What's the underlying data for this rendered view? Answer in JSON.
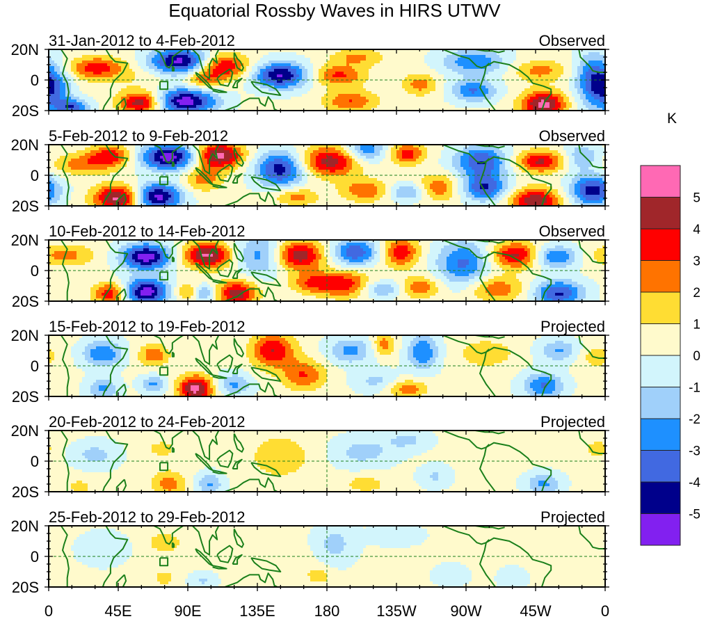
{
  "chart_data": {
    "type": "heatmap",
    "title": "Equatorial Rossby Waves in HIRS UTWV",
    "units_label": "K",
    "xlabel": "",
    "ylabel": "",
    "x_range_deg_east": [
      0,
      360
    ],
    "y_range_deg": [
      -20,
      20
    ],
    "x_ticks": [
      {
        "lon": 0,
        "label": "0"
      },
      {
        "lon": 45,
        "label": "45E"
      },
      {
        "lon": 90,
        "label": "90E"
      },
      {
        "lon": 135,
        "label": "135E"
      },
      {
        "lon": 180,
        "label": "180"
      },
      {
        "lon": 225,
        "label": "135W"
      },
      {
        "lon": 270,
        "label": "90W"
      },
      {
        "lon": 315,
        "label": "45W"
      },
      {
        "lon": 360,
        "label": "0"
      }
    ],
    "y_ticks": [
      {
        "lat": 20,
        "label": "20N"
      },
      {
        "lat": 0,
        "label": "0"
      },
      {
        "lat": -20,
        "label": "20S"
      }
    ],
    "reference_lines": {
      "equator_lat": 0,
      "dateline_lon": 180,
      "style": "dashed"
    },
    "legend": {
      "placement": "right",
      "levels": [
        5,
        4,
        3,
        2,
        1,
        0,
        -1,
        -2,
        -3,
        -4,
        -5
      ],
      "colors_top_to_bottom": [
        "#ff69b4",
        "#a0262a",
        "#ff0000",
        "#ff7300",
        "#ffdd33",
        "#fffacc",
        "#d2f5fc",
        "#a0d0fa",
        "#1e90ff",
        "#4169e1",
        "#00008b",
        "#8220f0"
      ]
    },
    "panels": [
      {
        "period": "31-Jan-2012 to 4-Feb-2012",
        "status": "Observed",
        "anomalies": [
          {
            "lon": 30,
            "lat": 8,
            "k": 3.2,
            "sx": 12,
            "sy": 5
          },
          {
            "lon": 85,
            "lat": 12,
            "k": -5.8,
            "sx": 14,
            "sy": 6
          },
          {
            "lon": 88,
            "lat": -14,
            "k": -5.8,
            "sx": 14,
            "sy": 6
          },
          {
            "lon": 60,
            "lat": -15,
            "k": 4.8,
            "sx": 10,
            "sy": 5
          },
          {
            "lon": 112,
            "lat": 9,
            "k": 4.2,
            "sx": 12,
            "sy": 6
          },
          {
            "lon": 100,
            "lat": 0,
            "k": 2.3,
            "sx": 8,
            "sy": 4
          },
          {
            "lon": 150,
            "lat": 3,
            "k": -5.3,
            "sx": 12,
            "sy": 6
          },
          {
            "lon": 188,
            "lat": 3,
            "k": 3.0,
            "sx": 12,
            "sy": 5
          },
          {
            "lon": 195,
            "lat": -14,
            "k": 2.8,
            "sx": 12,
            "sy": 5
          },
          {
            "lon": 200,
            "lat": 15,
            "k": 2.0,
            "sx": 12,
            "sy": 4
          },
          {
            "lon": 240,
            "lat": -3,
            "k": 2.3,
            "sx": 8,
            "sy": 5
          },
          {
            "lon": 275,
            "lat": 12,
            "k": -3.1,
            "sx": 14,
            "sy": 6
          },
          {
            "lon": 275,
            "lat": -7,
            "k": -3.3,
            "sx": 10,
            "sy": 5
          },
          {
            "lon": 318,
            "lat": 6,
            "k": 2.2,
            "sx": 12,
            "sy": 5
          },
          {
            "lon": 320,
            "lat": -16,
            "k": 5.2,
            "sx": 10,
            "sy": 6
          },
          {
            "lon": 352,
            "lat": 0,
            "k": -3.5,
            "sx": 8,
            "sy": 12
          },
          {
            "lon": 3,
            "lat": -5,
            "k": -3.2,
            "sx": 8,
            "sy": 10
          },
          {
            "lon": 15,
            "lat": -18,
            "k": -3.8,
            "sx": 8,
            "sy": 4
          },
          {
            "lon": 55,
            "lat": 3,
            "k": 0.8,
            "sx": 20,
            "sy": 8
          }
        ]
      },
      {
        "period": "5-Feb-2012 to 9-Feb-2012",
        "status": "Observed",
        "anomalies": [
          {
            "lon": 22,
            "lat": 7,
            "k": 2.3,
            "sx": 14,
            "sy": 5
          },
          {
            "lon": 40,
            "lat": 13,
            "k": 3.2,
            "sx": 10,
            "sy": 5
          },
          {
            "lon": 78,
            "lat": 12,
            "k": -5.8,
            "sx": 13,
            "sy": 6
          },
          {
            "lon": 70,
            "lat": -14,
            "k": -5.8,
            "sx": 11,
            "sy": 6
          },
          {
            "lon": 45,
            "lat": -15,
            "k": 5.3,
            "sx": 11,
            "sy": 6
          },
          {
            "lon": 110,
            "lat": 13,
            "k": 5.2,
            "sx": 11,
            "sy": 6
          },
          {
            "lon": 100,
            "lat": -2,
            "k": 2.3,
            "sx": 9,
            "sy": 6
          },
          {
            "lon": 150,
            "lat": 4,
            "k": -4.8,
            "sx": 11,
            "sy": 8
          },
          {
            "lon": 182,
            "lat": 9,
            "k": 4.3,
            "sx": 14,
            "sy": 7
          },
          {
            "lon": 160,
            "lat": -14,
            "k": 2.3,
            "sx": 10,
            "sy": 4
          },
          {
            "lon": 205,
            "lat": 17,
            "k": -3.2,
            "sx": 9,
            "sy": 6
          },
          {
            "lon": 232,
            "lat": 14,
            "k": 3.3,
            "sx": 8,
            "sy": 5
          },
          {
            "lon": 205,
            "lat": -10,
            "k": 2.7,
            "sx": 11,
            "sy": 5
          },
          {
            "lon": 232,
            "lat": -11,
            "k": -2.5,
            "sx": 9,
            "sy": 4
          },
          {
            "lon": 252,
            "lat": -8,
            "k": 2.6,
            "sx": 9,
            "sy": 6
          },
          {
            "lon": 280,
            "lat": 9,
            "k": -4.2,
            "sx": 12,
            "sy": 7
          },
          {
            "lon": 282,
            "lat": -8,
            "k": -4.2,
            "sx": 10,
            "sy": 6
          },
          {
            "lon": 318,
            "lat": 9,
            "k": 4.0,
            "sx": 11,
            "sy": 5
          },
          {
            "lon": 315,
            "lat": -17,
            "k": 4.7,
            "sx": 11,
            "sy": 6
          },
          {
            "lon": 352,
            "lat": -10,
            "k": -4.8,
            "sx": 10,
            "sy": 7
          },
          {
            "lon": 345,
            "lat": 12,
            "k": -2.2,
            "sx": 8,
            "sy": 6
          }
        ]
      },
      {
        "period": "10-Feb-2012 to 14-Feb-2012",
        "status": "Observed",
        "anomalies": [
          {
            "lon": 10,
            "lat": 10,
            "k": 2.2,
            "sx": 14,
            "sy": 5
          },
          {
            "lon": 63,
            "lat": 9,
            "k": -5.8,
            "sx": 11,
            "sy": 6
          },
          {
            "lon": 63,
            "lat": -14,
            "k": -5.8,
            "sx": 10,
            "sy": 6
          },
          {
            "lon": 40,
            "lat": -15,
            "k": 3.6,
            "sx": 8,
            "sy": 5
          },
          {
            "lon": 103,
            "lat": 10,
            "k": 5.1,
            "sx": 11,
            "sy": 6
          },
          {
            "lon": 122,
            "lat": -15,
            "k": 4.4,
            "sx": 9,
            "sy": 6
          },
          {
            "lon": 90,
            "lat": -14,
            "k": 2.2,
            "sx": 6,
            "sy": 4
          },
          {
            "lon": 100,
            "lat": -15,
            "k": -2.6,
            "sx": 5,
            "sy": 4
          },
          {
            "lon": 140,
            "lat": 10,
            "k": -3.2,
            "sx": 13,
            "sy": 9
          },
          {
            "lon": 160,
            "lat": 10,
            "k": 5.2,
            "sx": 12,
            "sy": 7
          },
          {
            "lon": 170,
            "lat": -8,
            "k": 2.5,
            "sx": 10,
            "sy": 5
          },
          {
            "lon": 192,
            "lat": -9,
            "k": 3.5,
            "sx": 12,
            "sy": 6
          },
          {
            "lon": 198,
            "lat": 12,
            "k": -4.1,
            "sx": 10,
            "sy": 6
          },
          {
            "lon": 228,
            "lat": 12,
            "k": 3.5,
            "sx": 8,
            "sy": 7
          },
          {
            "lon": 215,
            "lat": -12,
            "k": -2.4,
            "sx": 10,
            "sy": 4
          },
          {
            "lon": 240,
            "lat": -11,
            "k": 2.6,
            "sx": 9,
            "sy": 5
          },
          {
            "lon": 268,
            "lat": 5,
            "k": -3.4,
            "sx": 12,
            "sy": 10
          },
          {
            "lon": 302,
            "lat": 10,
            "k": 4.1,
            "sx": 11,
            "sy": 6
          },
          {
            "lon": 290,
            "lat": -12,
            "k": 2.6,
            "sx": 12,
            "sy": 6
          },
          {
            "lon": 328,
            "lat": 9,
            "k": -3.3,
            "sx": 10,
            "sy": 5
          },
          {
            "lon": 330,
            "lat": -15,
            "k": -4.3,
            "sx": 11,
            "sy": 6
          }
        ]
      },
      {
        "period": "15-Feb-2012 to 19-Feb-2012",
        "status": "Projected",
        "anomalies": [
          {
            "lon": 35,
            "lat": 8,
            "k": -3.2,
            "sx": 9,
            "sy": 6
          },
          {
            "lon": 68,
            "lat": 7,
            "k": 2.6,
            "sx": 7,
            "sy": 5
          },
          {
            "lon": 35,
            "lat": -15,
            "k": -2.4,
            "sx": 7,
            "sy": 5
          },
          {
            "lon": 68,
            "lat": -12,
            "k": -2.4,
            "sx": 6,
            "sy": 4
          },
          {
            "lon": 95,
            "lat": -15,
            "k": 5.2,
            "sx": 8,
            "sy": 6
          },
          {
            "lon": 120,
            "lat": -12,
            "k": -2.4,
            "sx": 8,
            "sy": 5
          },
          {
            "lon": 145,
            "lat": 10,
            "k": 3.8,
            "sx": 10,
            "sy": 8
          },
          {
            "lon": 165,
            "lat": -6,
            "k": 2.8,
            "sx": 10,
            "sy": 7
          },
          {
            "lon": 195,
            "lat": 10,
            "k": -2.5,
            "sx": 10,
            "sy": 6
          },
          {
            "lon": 217,
            "lat": 14,
            "k": 2.4,
            "sx": 5,
            "sy": 5
          },
          {
            "lon": 242,
            "lat": 9,
            "k": -3.2,
            "sx": 7,
            "sy": 8
          },
          {
            "lon": 232,
            "lat": -15,
            "k": 2.5,
            "sx": 9,
            "sy": 4
          },
          {
            "lon": 212,
            "lat": -10,
            "k": -1.5,
            "sx": 10,
            "sy": 5
          },
          {
            "lon": 283,
            "lat": 8,
            "k": 1.8,
            "sx": 12,
            "sy": 6
          },
          {
            "lon": 330,
            "lat": 10,
            "k": -2.3,
            "sx": 9,
            "sy": 5
          },
          {
            "lon": 320,
            "lat": -13,
            "k": -3.3,
            "sx": 9,
            "sy": 6
          },
          {
            "lon": 355,
            "lat": 6,
            "k": 1.5,
            "sx": 8,
            "sy": 5
          }
        ]
      },
      {
        "period": "20-Feb-2012 to 24-Feb-2012",
        "status": "Projected",
        "anomalies": [
          {
            "lon": 30,
            "lat": 4,
            "k": -1.6,
            "sx": 10,
            "sy": 6
          },
          {
            "lon": 73,
            "lat": 8,
            "k": 1.3,
            "sx": 7,
            "sy": 4
          },
          {
            "lon": 78,
            "lat": -15,
            "k": 2.3,
            "sx": 8,
            "sy": 6
          },
          {
            "lon": 104,
            "lat": -15,
            "k": -2.3,
            "sx": 6,
            "sy": 5
          },
          {
            "lon": 150,
            "lat": 3,
            "k": 1.6,
            "sx": 14,
            "sy": 10
          },
          {
            "lon": 203,
            "lat": 6,
            "k": -1.6,
            "sx": 14,
            "sy": 7
          },
          {
            "lon": 232,
            "lat": 14,
            "k": -1.4,
            "sx": 10,
            "sy": 5
          },
          {
            "lon": 205,
            "lat": -15,
            "k": 1.5,
            "sx": 9,
            "sy": 4
          },
          {
            "lon": 250,
            "lat": -10,
            "k": -1.3,
            "sx": 7,
            "sy": 5
          },
          {
            "lon": 320,
            "lat": -15,
            "k": -2.4,
            "sx": 8,
            "sy": 5
          },
          {
            "lon": 355,
            "lat": 8,
            "k": 1.4,
            "sx": 6,
            "sy": 4
          },
          {
            "lon": 20,
            "lat": -17,
            "k": 1.2,
            "sx": 6,
            "sy": 4
          }
        ]
      },
      {
        "period": "25-Feb-2012 to 29-Feb-2012",
        "status": "Projected",
        "anomalies": [
          {
            "lon": 75,
            "lat": 9,
            "k": 1.5,
            "sx": 8,
            "sy": 5
          },
          {
            "lon": 35,
            "lat": 5,
            "k": -0.8,
            "sx": 12,
            "sy": 8
          },
          {
            "lon": 75,
            "lat": -14,
            "k": 1.3,
            "sx": 5,
            "sy": 4
          },
          {
            "lon": 100,
            "lat": -16,
            "k": -1.3,
            "sx": 6,
            "sy": 4
          },
          {
            "lon": 175,
            "lat": -13,
            "k": 1.3,
            "sx": 6,
            "sy": 4
          },
          {
            "lon": 185,
            "lat": 8,
            "k": -1.6,
            "sx": 9,
            "sy": 9
          },
          {
            "lon": 225,
            "lat": 14,
            "k": -0.9,
            "sx": 12,
            "sy": 5
          },
          {
            "lon": 260,
            "lat": -12,
            "k": -0.9,
            "sx": 8,
            "sy": 5
          },
          {
            "lon": 300,
            "lat": -15,
            "k": -1.2,
            "sx": 6,
            "sy": 5
          },
          {
            "lon": 145,
            "lat": -4,
            "k": 0.6,
            "sx": 18,
            "sy": 8
          }
        ]
      }
    ]
  }
}
